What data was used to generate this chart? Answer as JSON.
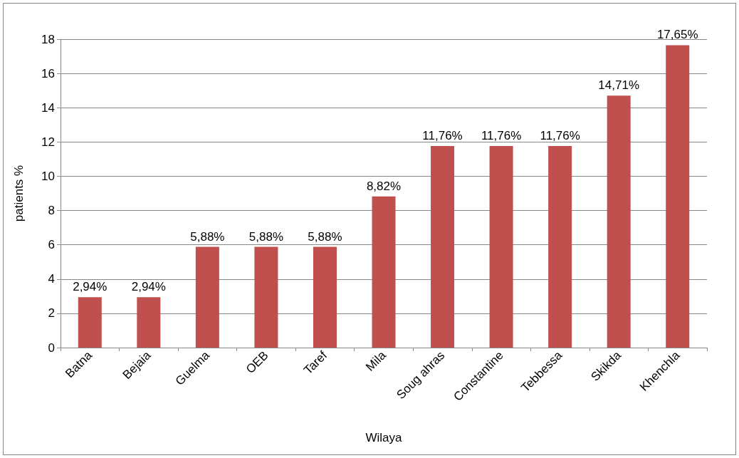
{
  "chart_data": {
    "type": "bar",
    "xlabel": "Wilaya",
    "ylabel": "patients %",
    "categories": [
      "Batna",
      "Bejaia",
      "Guelma",
      "OEB",
      "Taref",
      "Mila",
      "Soug ahras",
      "Constantine",
      "Tebbessa",
      "Skikda",
      "Khenchla"
    ],
    "values": [
      2.94,
      2.94,
      5.88,
      5.88,
      5.88,
      8.82,
      11.76,
      11.76,
      11.76,
      14.71,
      17.65
    ],
    "value_labels": [
      "2,94%",
      "2,94%",
      "5,88%",
      "5,88%",
      "5,88%",
      "8,82%",
      "11,76%",
      "11,76%",
      "11,76%",
      "14,71%",
      "17,65%"
    ],
    "color": "#c0504d",
    "ylim": [
      0,
      18
    ],
    "yticks": [
      0,
      2,
      4,
      6,
      8,
      10,
      12,
      14,
      16,
      18
    ],
    "grid": "y"
  }
}
